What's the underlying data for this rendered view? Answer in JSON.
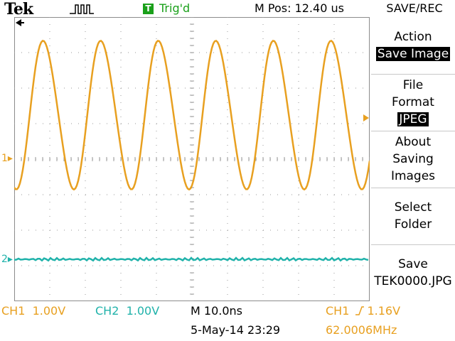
{
  "header": {
    "brand": "Tek",
    "trigger_badge": "T",
    "trigger_status": "Trig'd",
    "m_pos": "M Pos: 12.40 us",
    "menu_title": "SAVE/REC"
  },
  "menu": {
    "action": {
      "label": "Action",
      "value": "Save Image"
    },
    "file_format": {
      "label1": "File",
      "label2": "Format",
      "value": "JPEG"
    },
    "about": {
      "l1": "About",
      "l2": "Saving",
      "l3": "Images"
    },
    "select_folder": {
      "l1": "Select",
      "l2": "Folder"
    },
    "save": {
      "l1": "Save",
      "l2": "TEK0000.JPG"
    }
  },
  "markers": {
    "ch1": "1",
    "ch2": "2"
  },
  "status": {
    "ch1_label": "CH1",
    "ch1_scale": "1.00V",
    "ch2_label": "CH2",
    "ch2_scale": "1.00V",
    "timebase": "M 10.0ns",
    "trigger_source": "CH1",
    "trigger_level": "1.16V",
    "date": "5-May-14 23:29",
    "frequency": "62.0006MHz"
  },
  "colors": {
    "ch1": "#e8a020",
    "ch2": "#20b2aa",
    "trigger": "#1aa01a"
  }
}
